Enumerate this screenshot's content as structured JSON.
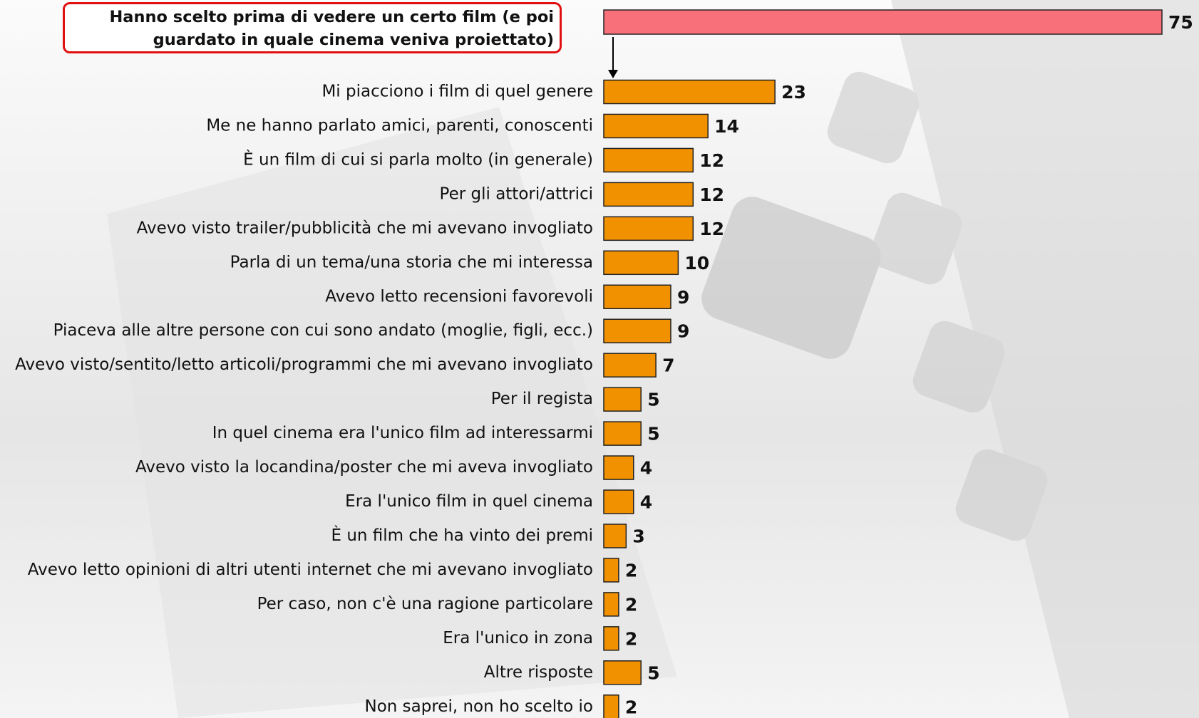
{
  "chart_data": {
    "type": "hbar",
    "highlight": {
      "label": "Hanno scelto prima di vedere un certo film (e poi guardato in quale cinema veniva proiettato)",
      "value": 75,
      "color": "#f7707a"
    },
    "categories": [
      "Mi piacciono i film di quel genere",
      "Me ne hanno parlato amici, parenti, conoscenti",
      "È un film di cui si parla molto (in generale)",
      "Per gli attori/attrici",
      "Avevo visto trailer/pubblicità che mi avevano invogliato",
      "Parla di un tema/una storia che mi interessa",
      "Avevo letto recensioni favorevoli",
      "Piaceva alle altre persone con cui sono andato (moglie, figli, ecc.)",
      "Avevo visto/sentito/letto articoli/programmi che mi avevano invogliato",
      "Per il regista",
      "In quel cinema era l'unico film ad interessarmi",
      "Avevo visto la locandina/poster che mi aveva invogliato",
      "Era l'unico film in quel cinema",
      "È un film che ha vinto dei premi",
      "Avevo letto opinioni di altri utenti internet che mi avevano invogliato",
      "Per caso, non c'è una ragione particolare",
      "Era l'unico in zona",
      "Altre risposte",
      "Non saprei, non ho scelto io"
    ],
    "values": [
      23,
      14,
      12,
      12,
      12,
      10,
      9,
      9,
      7,
      5,
      5,
      4,
      4,
      3,
      2,
      2,
      2,
      5,
      2
    ],
    "color": "#f29100"
  }
}
